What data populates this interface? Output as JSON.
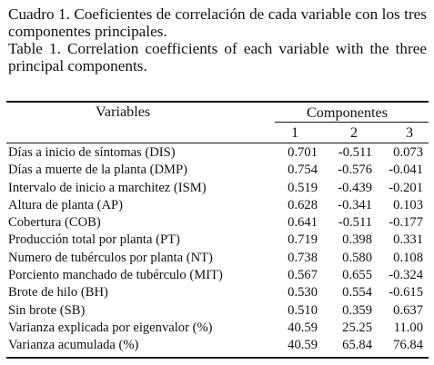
{
  "caption": {
    "spanish": "Cuadro 1. Coeficientes de correlación de cada variable con los tres componentes principales.",
    "english": "Table 1. Correlation coefficients of each variable with the three principal components."
  },
  "table": {
    "header": {
      "variables": "Variables",
      "components": "Componentes",
      "component_numbers": [
        "1",
        "2",
        "3"
      ]
    },
    "rows": [
      {
        "label": "Días a inicio de síntomas (DIS)",
        "c1": "0.701",
        "c2": "-0.511",
        "c3": "0.073"
      },
      {
        "label": "Días a muerte de la planta (DMP)",
        "c1": "0.754",
        "c2": "-0.576",
        "c3": "-0.041"
      },
      {
        "label": "Intervalo de inicio a marchitez (ISM)",
        "c1": "0.519",
        "c2": "-0.439",
        "c3": "-0.201"
      },
      {
        "label": "Altura de planta (AP)",
        "c1": "0.628",
        "c2": "-0.341",
        "c3": "0.103"
      },
      {
        "label": "Cobertura (COB)",
        "c1": "0.641",
        "c2": "-0.511",
        "c3": "-0.177"
      },
      {
        "label": "Producción total por planta (PT)",
        "c1": "0.719",
        "c2": "0.398",
        "c3": "0.331"
      },
      {
        "label": "Numero de tubérculos por planta (NT)",
        "c1": "0.738",
        "c2": "0.580",
        "c3": "0.108"
      },
      {
        "label": "Porciento  manchado de tubérculo (MIT)",
        "c1": "0.567",
        "c2": "0.655",
        "c3": "-0.324"
      },
      {
        "label": "Brote de hilo (BH)",
        "c1": "0.530",
        "c2": "0.554",
        "c3": "-0.615"
      },
      {
        "label": "Sin brote (SB)",
        "c1": "0.510",
        "c2": "0.359",
        "c3": "0.637"
      },
      {
        "label": "Varianza explicada por eigenvalor (%)",
        "c1": "40.59",
        "c2": "25.25",
        "c3": "11.00"
      },
      {
        "label": "Varianza acumulada (%)",
        "c1": "40.59",
        "c2": "65.84",
        "c3": "76.84"
      }
    ]
  }
}
